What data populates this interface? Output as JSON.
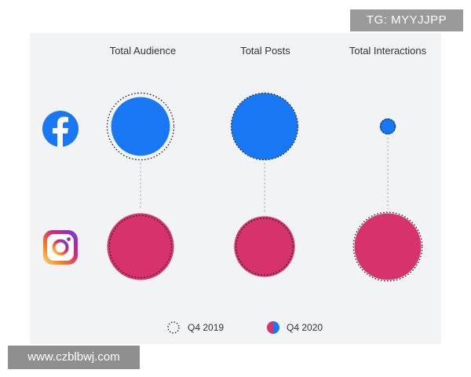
{
  "watermarks": {
    "top": "TG: MYYJJPP",
    "bottom": "www.czblbwj.com"
  },
  "colors": {
    "facebook": "#1877f2",
    "instagram": "#d6336c",
    "background": "#f1f3f5",
    "connector": "#c8c8c8",
    "outline": "#222222"
  },
  "chart_data": {
    "type": "proportional-area bubble matrix",
    "columns": [
      "Total Audience",
      "Total Posts",
      "Total Interactions"
    ],
    "rows": [
      {
        "platform": "Facebook",
        "icon": "facebook-logo-icon"
      },
      {
        "platform": "Instagram",
        "icon": "instagram-logo-icon"
      }
    ],
    "legend": [
      {
        "label": "Q4 2019",
        "style": "dotted-outline"
      },
      {
        "label": "Q4 2020",
        "style": "filled"
      }
    ],
    "legend_placement": "bottom-center",
    "relative_diameter_units": {
      "note_scale": "diameters estimated relative to largest circle = 100",
      "Facebook": {
        "Total Audience": {
          "Q4 2019": 100,
          "Q4 2020": 88
        },
        "Total Posts": {
          "Q4 2019": 100,
          "Q4 2020": 100
        },
        "Total Interactions": {
          "Q4 2019": 22,
          "Q4 2020": 24
        }
      },
      "Instagram": {
        "Total Audience": {
          "Q4 2019": 93,
          "Q4 2020": 100
        },
        "Total Posts": {
          "Q4 2019": 85,
          "Q4 2020": 91
        },
        "Total Interactions": {
          "Q4 2019": 103,
          "Q4 2020": 100
        }
      }
    }
  }
}
